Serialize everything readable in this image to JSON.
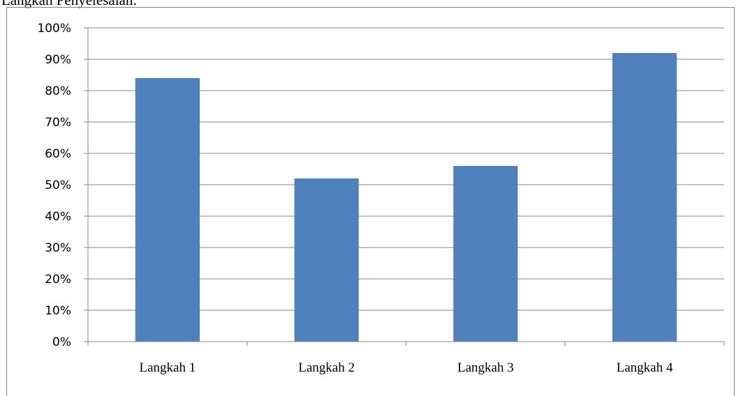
{
  "heading": "Langkah Penyelesaian:",
  "chart_data": {
    "type": "bar",
    "categories": [
      "Langkah 1",
      "Langkah 2",
      "Langkah 3",
      "Langkah 4"
    ],
    "values": [
      84,
      52,
      56,
      92
    ],
    "ylim": [
      0,
      100
    ],
    "yticks": [
      "0%",
      "10%",
      "20%",
      "30%",
      "40%",
      "50%",
      "60%",
      "70%",
      "80%",
      "90%",
      "100%"
    ],
    "grid": true,
    "legend": "none",
    "bar_color": "#4f81bd",
    "grid_color": "#868686"
  }
}
